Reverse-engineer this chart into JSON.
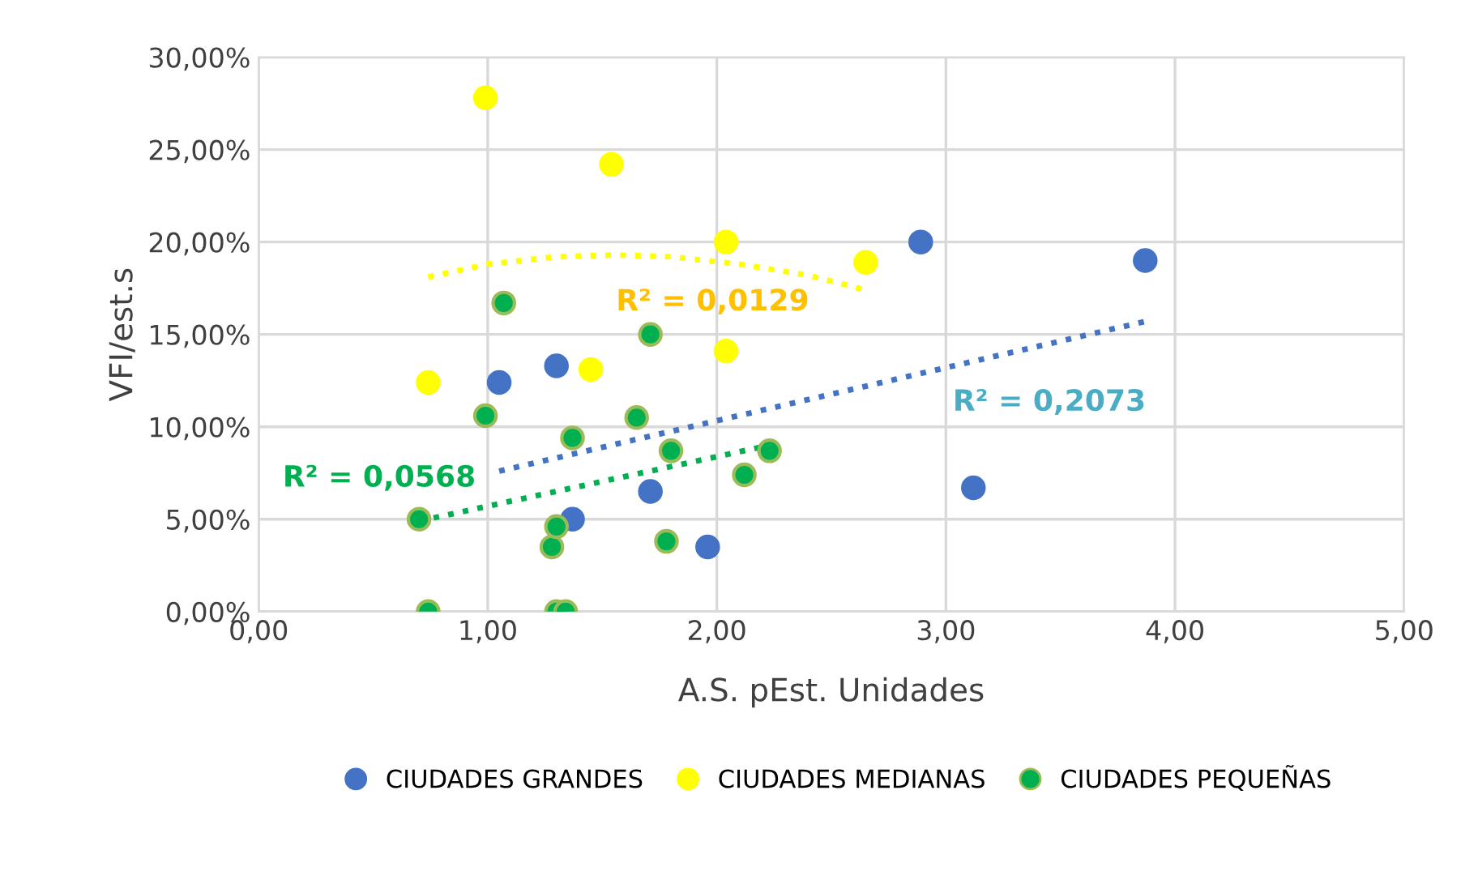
{
  "chart_data": {
    "type": "scatter",
    "xlabel": "A.S. pEst. Unidades",
    "ylabel": "VFI/est.s",
    "xlim": [
      0,
      5
    ],
    "xticks": [
      {
        "value": 0,
        "label": "0,00"
      },
      {
        "value": 1,
        "label": "1,00"
      },
      {
        "value": 2,
        "label": "2,00"
      },
      {
        "value": 3,
        "label": "3,00"
      },
      {
        "value": 4,
        "label": "4,00"
      },
      {
        "value": 5,
        "label": "5,00"
      }
    ],
    "ylim": [
      0,
      30
    ],
    "yticks": [
      {
        "value": 0,
        "label": "0,00%"
      },
      {
        "value": 5,
        "label": "5,00%"
      },
      {
        "value": 10,
        "label": "10,00%"
      },
      {
        "value": 15,
        "label": "15,00%"
      },
      {
        "value": 20,
        "label": "20,00%"
      },
      {
        "value": 25,
        "label": "25,00%"
      },
      {
        "value": 30,
        "label": "30,00%"
      }
    ],
    "grid": true,
    "legend": "bottom",
    "marker": "circle",
    "series": [
      {
        "name": "CIUDADES GRANDES",
        "color": "#4472c4",
        "x": [
          1.05,
          1.3,
          1.37,
          1.71,
          1.96,
          2.89,
          3.12,
          3.87
        ],
        "values": [
          12.4,
          13.3,
          5.0,
          6.5,
          3.5,
          20.0,
          6.7,
          19.0
        ]
      },
      {
        "name": "CIUDADES MEDIANAS",
        "color": "#ffff00",
        "x": [
          0.74,
          0.99,
          1.45,
          1.54,
          2.04,
          2.04,
          2.65
        ],
        "values": [
          12.4,
          27.8,
          13.1,
          24.2,
          20.0,
          14.1,
          18.9
        ]
      },
      {
        "name": "CIUDADES PEQUEÑAS",
        "color": "#00b050",
        "x": [
          0.7,
          0.74,
          0.99,
          1.07,
          1.28,
          1.3,
          1.3,
          1.34,
          1.37,
          1.65,
          1.71,
          1.8,
          1.78,
          2.12,
          2.23
        ],
        "values": [
          5.0,
          0,
          10.6,
          16.7,
          3.5,
          4.6,
          0,
          0,
          9.4,
          10.5,
          15.0,
          8.7,
          3.8,
          7.4,
          8.7
        ]
      },
      {
        "type": "line",
        "line_style": "dotted",
        "marker": "none",
        "color": "#4472c4",
        "x": [
          1.05,
          3.87
        ],
        "values": [
          7.6,
          15.7
        ]
      },
      {
        "type": "line",
        "line_style": "dotted",
        "marker": "none",
        "color": "#ffff00",
        "x": [
          0.74,
          1.0,
          1.3,
          1.55,
          1.8,
          2.1,
          2.4,
          2.65
        ],
        "values": [
          18.1,
          18.8,
          19.2,
          19.3,
          19.2,
          18.8,
          18.2,
          17.4
        ]
      },
      {
        "type": "line",
        "line_style": "dotted",
        "marker": "none",
        "color": "#00b050",
        "x": [
          0.7,
          2.23
        ],
        "values": [
          4.9,
          9.0
        ]
      }
    ],
    "annotations": [
      "R² = 0,2073",
      "R² = 0,0129",
      "R² = 0,0568"
    ]
  }
}
